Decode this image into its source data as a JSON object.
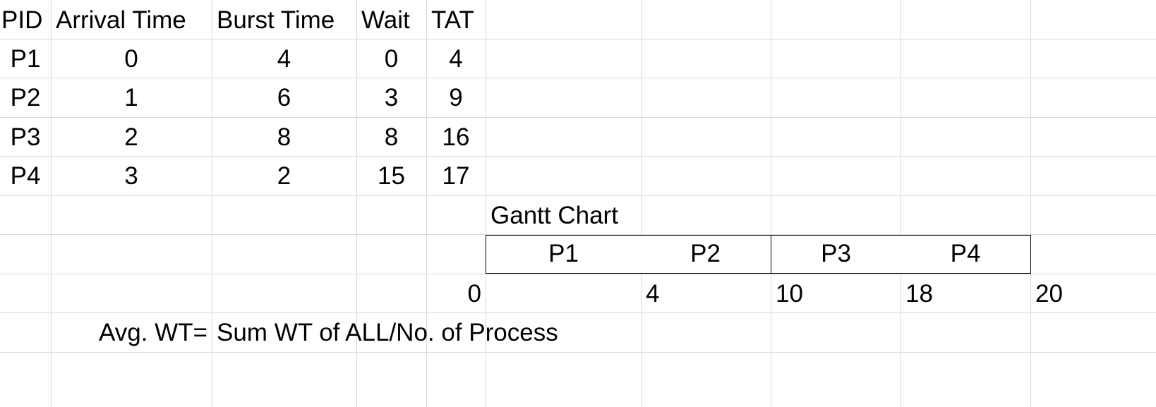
{
  "table": {
    "headers": [
      "PID",
      "Arrival Time",
      "Burst Time",
      "Wait",
      "TAT"
    ],
    "rows": [
      [
        "P1",
        "0",
        "4",
        "0",
        "4"
      ],
      [
        "P2",
        "1",
        "6",
        "3",
        "9"
      ],
      [
        "P3",
        "2",
        "8",
        "8",
        "16"
      ],
      [
        "P4",
        "3",
        "2",
        "15",
        "17"
      ]
    ]
  },
  "gantt": {
    "title": "Gantt Chart",
    "blocks": [
      "P1",
      "P2",
      "P3",
      "P4"
    ],
    "times": [
      "0",
      "4",
      "10",
      "18",
      "20"
    ]
  },
  "formula": {
    "label": "Avg. WT=",
    "text": "Sum WT of ALL/No. of Process"
  },
  "colors": {
    "gridline": "#d9d9d9",
    "text": "#000000",
    "gantt_border": "#000000"
  }
}
